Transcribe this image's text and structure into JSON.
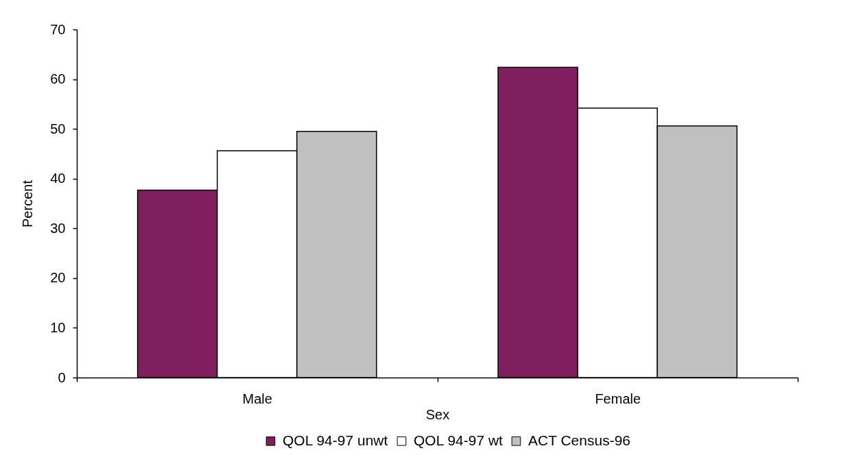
{
  "chart_data": {
    "type": "bar",
    "xlabel": "Sex",
    "ylabel": "Percent",
    "categories": [
      "Male",
      "Female"
    ],
    "series": [
      {
        "name": "QOL 94-97 unwt",
        "color": "#7f1f5f",
        "values": [
          37.7,
          62.4
        ]
      },
      {
        "name": "QOL 94-97 wt",
        "color": "#ffffff",
        "values": [
          45.6,
          54.2
        ]
      },
      {
        "name": "ACT Census-96",
        "color": "#c0c0c0",
        "values": [
          49.5,
          50.6
        ]
      }
    ],
    "ylim": [
      0,
      70
    ],
    "yticks": [
      0,
      10,
      20,
      30,
      40,
      50,
      60,
      70
    ],
    "legend": "bottom"
  }
}
